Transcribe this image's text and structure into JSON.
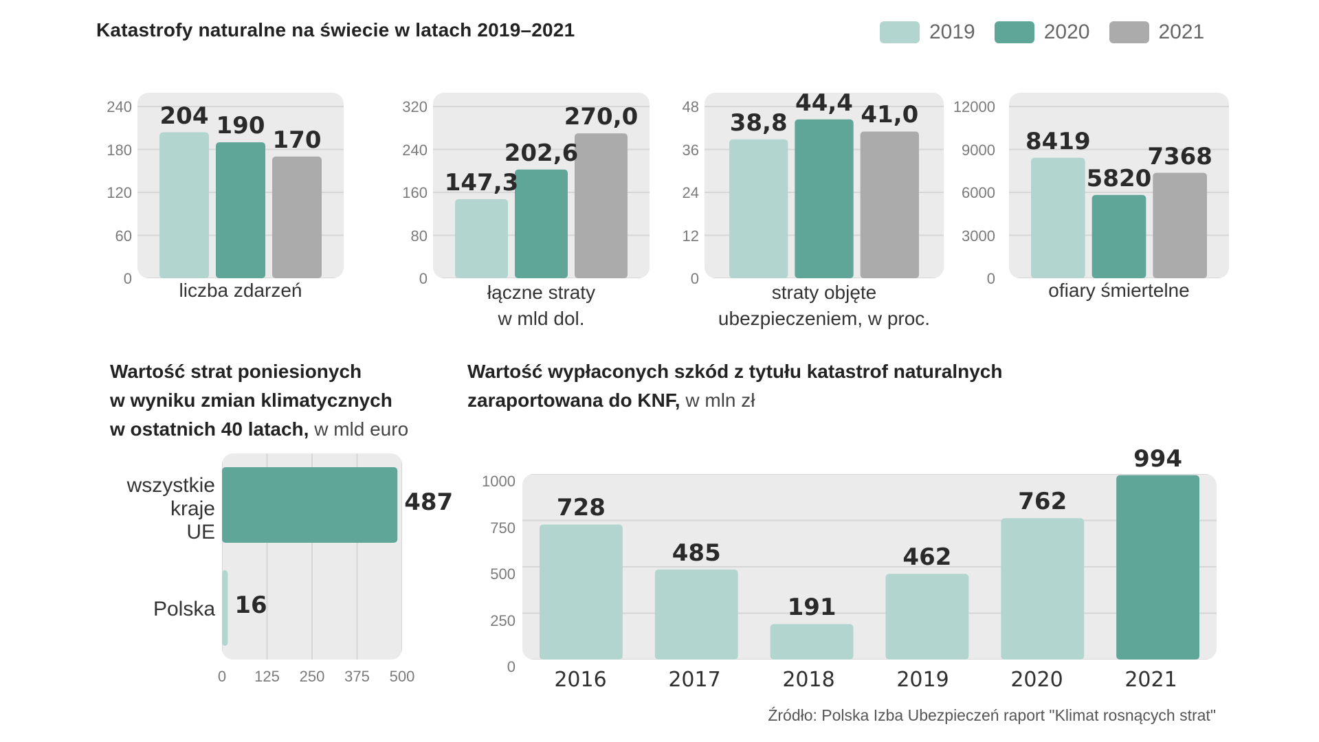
{
  "header": {
    "title": "Katastrofy naturalne na świecie w latach 2019–2021"
  },
  "legend": {
    "items": [
      "2019",
      "2020",
      "2021"
    ]
  },
  "colors": {
    "c2019": "#b2d5cf",
    "c2020": "#5fa698",
    "c2021": "#ababab",
    "panel": "#ebebeb",
    "grid": "#d6d6d6",
    "text": "#222222"
  },
  "chart_data": [
    {
      "type": "bar",
      "title": "liczba zdarzeń",
      "categories": [
        "2019",
        "2020",
        "2021"
      ],
      "values": [
        204,
        190,
        170
      ],
      "value_labels": [
        "204",
        "190",
        "170"
      ],
      "ylim": [
        0,
        240
      ],
      "yticks": [
        "0",
        "60",
        "120",
        "180",
        "240"
      ]
    },
    {
      "type": "bar",
      "title_lines": [
        "łączne straty",
        "w mld dol."
      ],
      "categories": [
        "2019",
        "2020",
        "2021"
      ],
      "values": [
        147.3,
        202.6,
        270.0
      ],
      "value_labels": [
        "147,3",
        "202,6",
        "270,0"
      ],
      "ylim": [
        0,
        320
      ],
      "yticks": [
        "0",
        "80",
        "160",
        "240",
        "320"
      ]
    },
    {
      "type": "bar",
      "title_lines": [
        "straty objęte",
        "ubezpieczeniem, w proc."
      ],
      "categories": [
        "2019",
        "2020",
        "2021"
      ],
      "values": [
        38.8,
        44.4,
        41.0
      ],
      "value_labels": [
        "38,8",
        "44,4",
        "41,0"
      ],
      "ylim": [
        0,
        48
      ],
      "yticks": [
        "0",
        "12",
        "24",
        "36",
        "48"
      ]
    },
    {
      "type": "bar",
      "title": "ofiary śmiertelne",
      "categories": [
        "2019",
        "2020",
        "2021"
      ],
      "values": [
        8419,
        5820,
        7368
      ],
      "value_labels": [
        "8419",
        "5820",
        "7368"
      ],
      "ylim": [
        0,
        12000
      ],
      "yticks": [
        "0",
        "3000",
        "6000",
        "9000",
        "12000"
      ]
    },
    {
      "type": "bar",
      "orientation": "horizontal",
      "title_bold_lines": [
        "Wartość strat poniesionych",
        "w wyniku zmian klimatycznych",
        "w ostatnich 40 latach,"
      ],
      "title_suffix": " w mld euro",
      "categories": [
        "wszystkie kraje UE",
        "Polska"
      ],
      "category_lines": [
        [
          "wszystkie",
          "kraje",
          "UE"
        ],
        [
          "Polska"
        ]
      ],
      "values": [
        487,
        16
      ],
      "value_labels": [
        "487",
        "16"
      ],
      "xlim": [
        0,
        500
      ],
      "xticks": [
        "0",
        "125",
        "250",
        "375",
        "500"
      ]
    },
    {
      "type": "bar",
      "title_bold_lines": [
        "Wartość wypłaconych szkód z tytułu katastrof naturalnych",
        "zaraportowana do KNF,"
      ],
      "title_suffix": " w mln zł",
      "categories": [
        "2016",
        "2017",
        "2018",
        "2019",
        "2020",
        "2021"
      ],
      "values": [
        728,
        485,
        191,
        462,
        762,
        994
      ],
      "value_labels": [
        "728",
        "485",
        "191",
        "462",
        "762",
        "994"
      ],
      "ylim": [
        0,
        1000
      ],
      "yticks": [
        "0",
        "250",
        "500",
        "750",
        "1000"
      ]
    }
  ],
  "source": "Źródło: Polska Izba Ubezpieczeń raport \"Klimat rosnących strat\""
}
